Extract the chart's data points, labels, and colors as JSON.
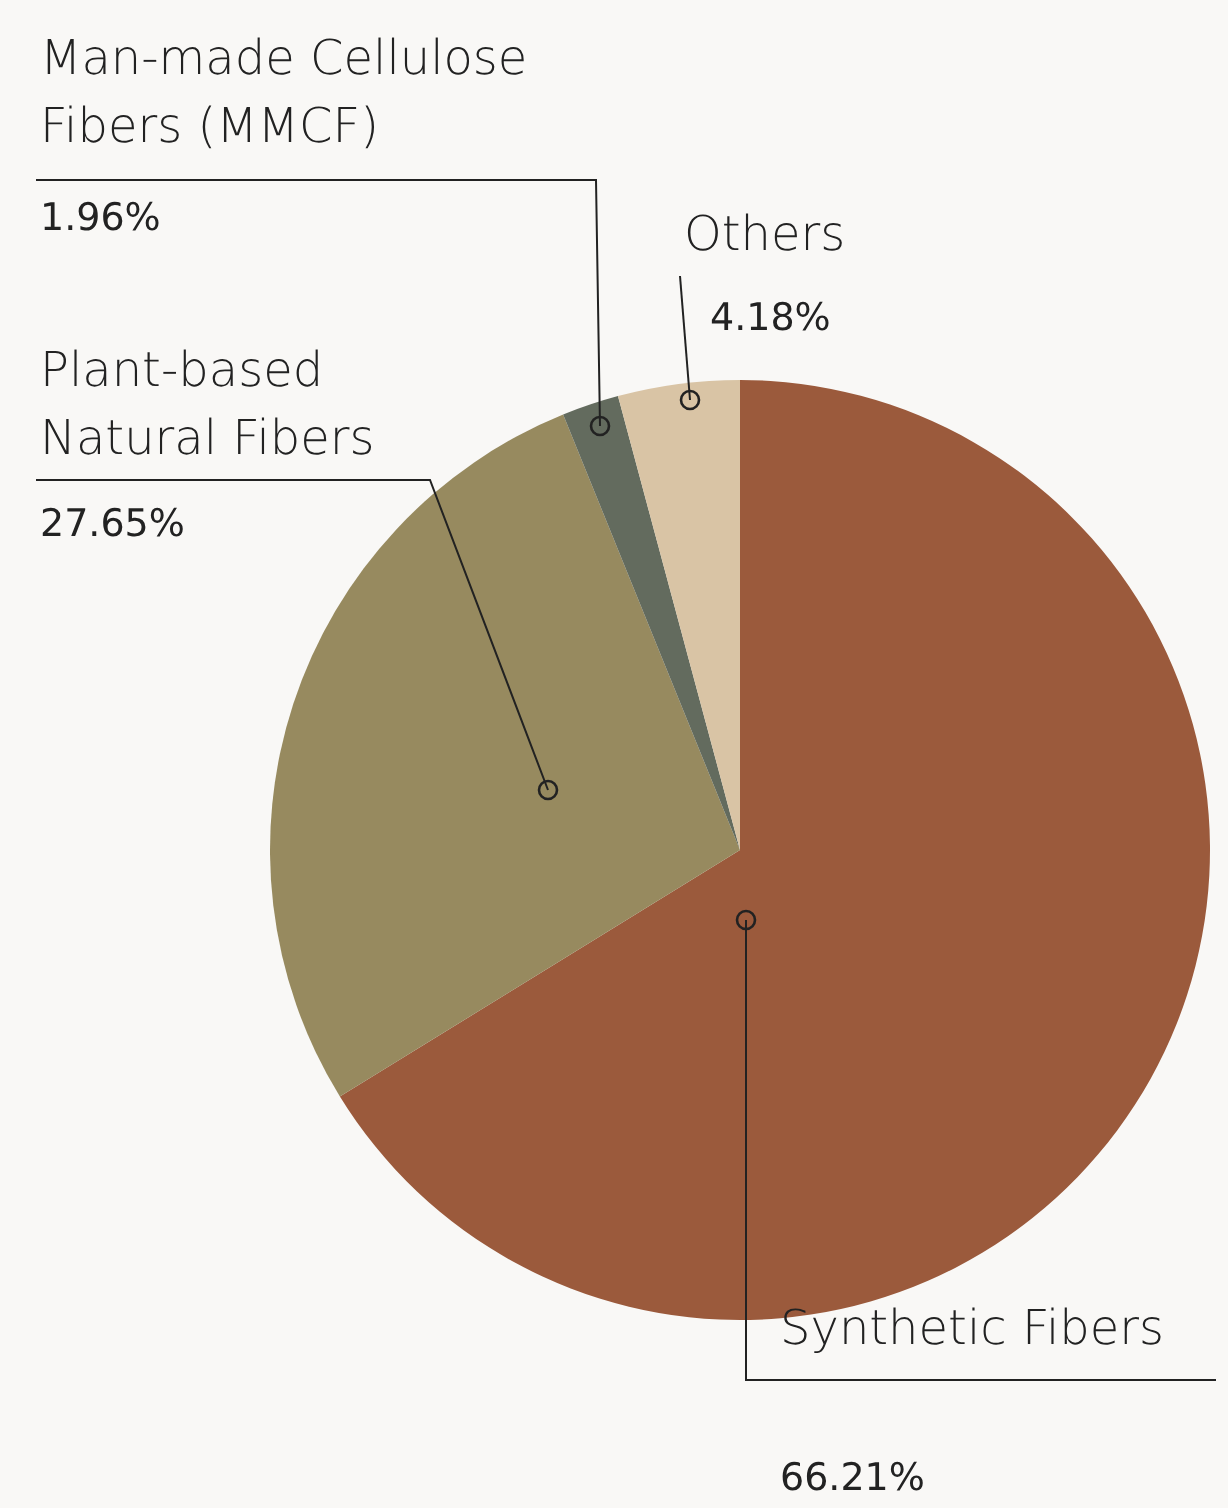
{
  "chart_data": {
    "type": "pie",
    "categories": [
      "Synthetic Fibers",
      "Plant-based\nNatural Fibers",
      "Man-made Cellulose\nFibers (MMCF)",
      "Others"
    ],
    "values": [
      66.21,
      27.65,
      1.96,
      4.18
    ],
    "value_labels": [
      "66.21%",
      "27.65%",
      "1.96%",
      "4.18%"
    ],
    "colors": [
      "#9b5a3c",
      "#978a5f",
      "#636b5e",
      "#d9c4a5"
    ]
  }
}
